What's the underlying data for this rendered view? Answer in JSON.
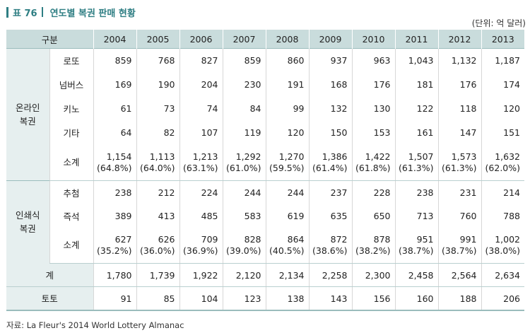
{
  "title": {
    "table_no": "표 76",
    "text": "연도별 복권 판매 현황"
  },
  "unit": "(단위: 억 달러)",
  "header": {
    "category": "구분",
    "years": [
      "2004",
      "2005",
      "2006",
      "2007",
      "2008",
      "2009",
      "2010",
      "2011",
      "2012",
      "2013"
    ]
  },
  "online": {
    "group_label_1": "온라인",
    "group_label_2": "복권",
    "rows": [
      {
        "label": "로또",
        "values": [
          "859",
          "768",
          "827",
          "859",
          "860",
          "937",
          "963",
          "1,043",
          "1,132",
          "1,187"
        ]
      },
      {
        "label": "넘버스",
        "values": [
          "169",
          "190",
          "204",
          "230",
          "191",
          "168",
          "176",
          "181",
          "176",
          "174"
        ]
      },
      {
        "label": "키노",
        "values": [
          "61",
          "73",
          "74",
          "84",
          "99",
          "132",
          "130",
          "122",
          "118",
          "120"
        ]
      },
      {
        "label": "기타",
        "values": [
          "64",
          "82",
          "107",
          "119",
          "120",
          "150",
          "153",
          "161",
          "147",
          "151"
        ]
      }
    ],
    "subtotal": {
      "label": "소계",
      "values": [
        "1,154",
        "1,113",
        "1,213",
        "1,292",
        "1,270",
        "1,386",
        "1,422",
        "1,507",
        "1,573",
        "1,632"
      ],
      "pcts": [
        "(64.8%)",
        "(64.0%)",
        "(63.1%)",
        "(61.0%)",
        "(59.5%)",
        "(61.4%)",
        "(61.8%)",
        "(61.3%)",
        "(61.3%)",
        "(62.0%)"
      ]
    }
  },
  "printed": {
    "group_label_1": "인쇄식",
    "group_label_2": "복권",
    "rows": [
      {
        "label": "추첨",
        "values": [
          "238",
          "212",
          "224",
          "244",
          "244",
          "237",
          "228",
          "238",
          "231",
          "214"
        ]
      },
      {
        "label": "즉석",
        "values": [
          "389",
          "413",
          "485",
          "583",
          "619",
          "635",
          "650",
          "713",
          "760",
          "788"
        ]
      }
    ],
    "subtotal": {
      "label": "소계",
      "values": [
        "627",
        "626",
        "709",
        "828",
        "864",
        "872",
        "878",
        "951",
        "991",
        "1,002"
      ],
      "pcts": [
        "(35.2%)",
        "(36.0%)",
        "(36.9%)",
        "(39.0%)",
        "(40.5%)",
        "(38.6%)",
        "(38.2%)",
        "(38.7%)",
        "(38.7%)",
        "(38.0%)"
      ]
    }
  },
  "total": {
    "label": "계",
    "values": [
      "1,780",
      "1,739",
      "1,922",
      "2,120",
      "2,134",
      "2,258",
      "2,300",
      "2,458",
      "2,564",
      "2,634"
    ]
  },
  "toto": {
    "label": "토토",
    "values": [
      "91",
      "85",
      "104",
      "123",
      "138",
      "143",
      "156",
      "160",
      "188",
      "206"
    ]
  },
  "source": "자료: La Fleur's 2014 World Lottery Almanac",
  "colors": {
    "accent": "#2e7e83",
    "header_bg": "#c9dcdc",
    "group_bg": "#e6efef"
  }
}
